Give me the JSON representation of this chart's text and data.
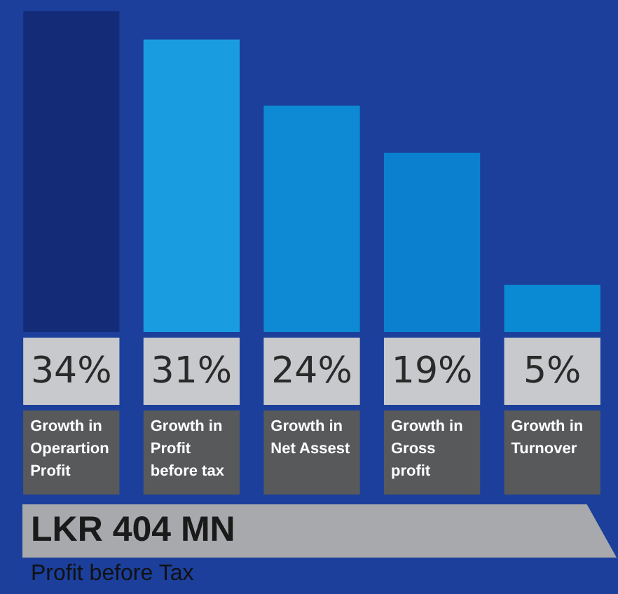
{
  "chart_data": {
    "type": "bar",
    "title": "LKR 404 MN",
    "subtitle": "Profit before Tax",
    "categories": [
      "Growth in Operartion Profit",
      "Growth in Profit before tax",
      "Growth in Net Assest",
      "Growth in Gross profit",
      "Growth in Turnover"
    ],
    "values": [
      34,
      31,
      24,
      19,
      5
    ],
    "colors": [
      "#142c78",
      "#1a9de0",
      "#0e8ad4",
      "#0b80cf",
      "#0a8ad3"
    ],
    "value_labels": [
      "34%",
      "31%",
      "24%",
      "19%",
      "5%"
    ],
    "ylim": [
      0,
      34
    ],
    "tick_labels": false,
    "legend": false
  }
}
